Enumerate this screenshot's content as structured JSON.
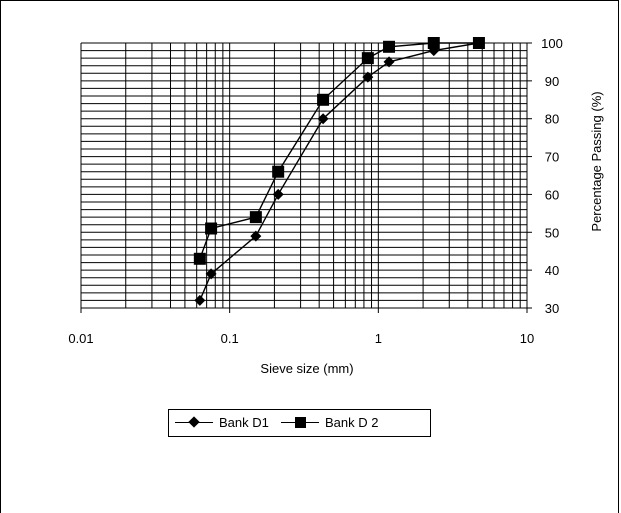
{
  "chart_data": {
    "type": "line",
    "xlabel": "Sieve size (mm)",
    "ylabel": "Percentage Passing (%)",
    "xscale": "log",
    "xlim": [
      0.01,
      10
    ],
    "ylim": [
      30,
      100
    ],
    "x_ticks": [
      "0.01",
      "0.1",
      "1",
      "10"
    ],
    "y_ticks": [
      "30",
      "40",
      "50",
      "60",
      "70",
      "80",
      "90",
      "100"
    ],
    "y_axis_side": "right",
    "grid": true,
    "legend_position": "bottom",
    "series": [
      {
        "name": "Bank D1",
        "marker": "diamond",
        "x": [
          0.063,
          0.075,
          0.15,
          0.212,
          0.425,
          0.85,
          1.18,
          2.36,
          4.75
        ],
        "y": [
          32,
          39,
          49,
          60,
          80,
          91,
          95,
          98,
          100
        ]
      },
      {
        "name": "Bank D 2",
        "marker": "square",
        "x": [
          0.063,
          0.075,
          0.15,
          0.212,
          0.425,
          0.85,
          1.18,
          2.36,
          4.75
        ],
        "y": [
          43,
          51,
          54,
          66,
          85,
          96,
          99,
          100,
          100
        ]
      }
    ]
  }
}
